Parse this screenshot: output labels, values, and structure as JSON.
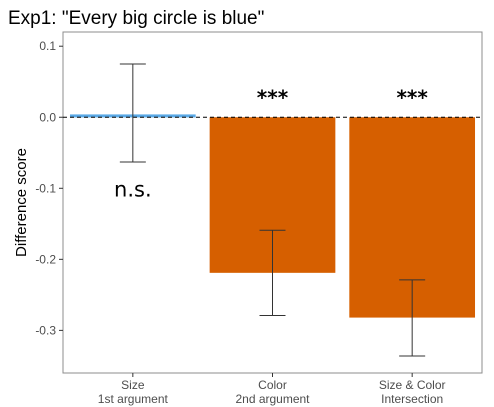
{
  "chart_data": {
    "type": "bar",
    "title": "Exp1: \"Every big circle is blue\"",
    "xlabel": "",
    "ylabel": "Difference score",
    "ylim": [
      -0.36,
      0.12
    ],
    "yticks": [
      0.1,
      0.0,
      -0.1,
      -0.2,
      -0.3
    ],
    "ytick_labels": [
      "0.1",
      "0.0",
      "-0.1",
      "-0.2",
      "-0.3"
    ],
    "categories": [
      [
        "Size",
        "1st argument"
      ],
      [
        "Color",
        "2nd argument"
      ],
      [
        "Size & Color",
        "Intersection"
      ]
    ],
    "values": [
      0.004,
      -0.219,
      -0.282
    ],
    "error_low": [
      -0.063,
      -0.279,
      -0.336
    ],
    "error_high": [
      0.075,
      -0.159,
      -0.229
    ],
    "colors": [
      "#5aa9e6",
      "#d65f00",
      "#d65f00"
    ],
    "annotations": [
      "n.s.",
      "***",
      "***"
    ],
    "reference_line": 0.0,
    "grid": false,
    "legend": "none"
  }
}
